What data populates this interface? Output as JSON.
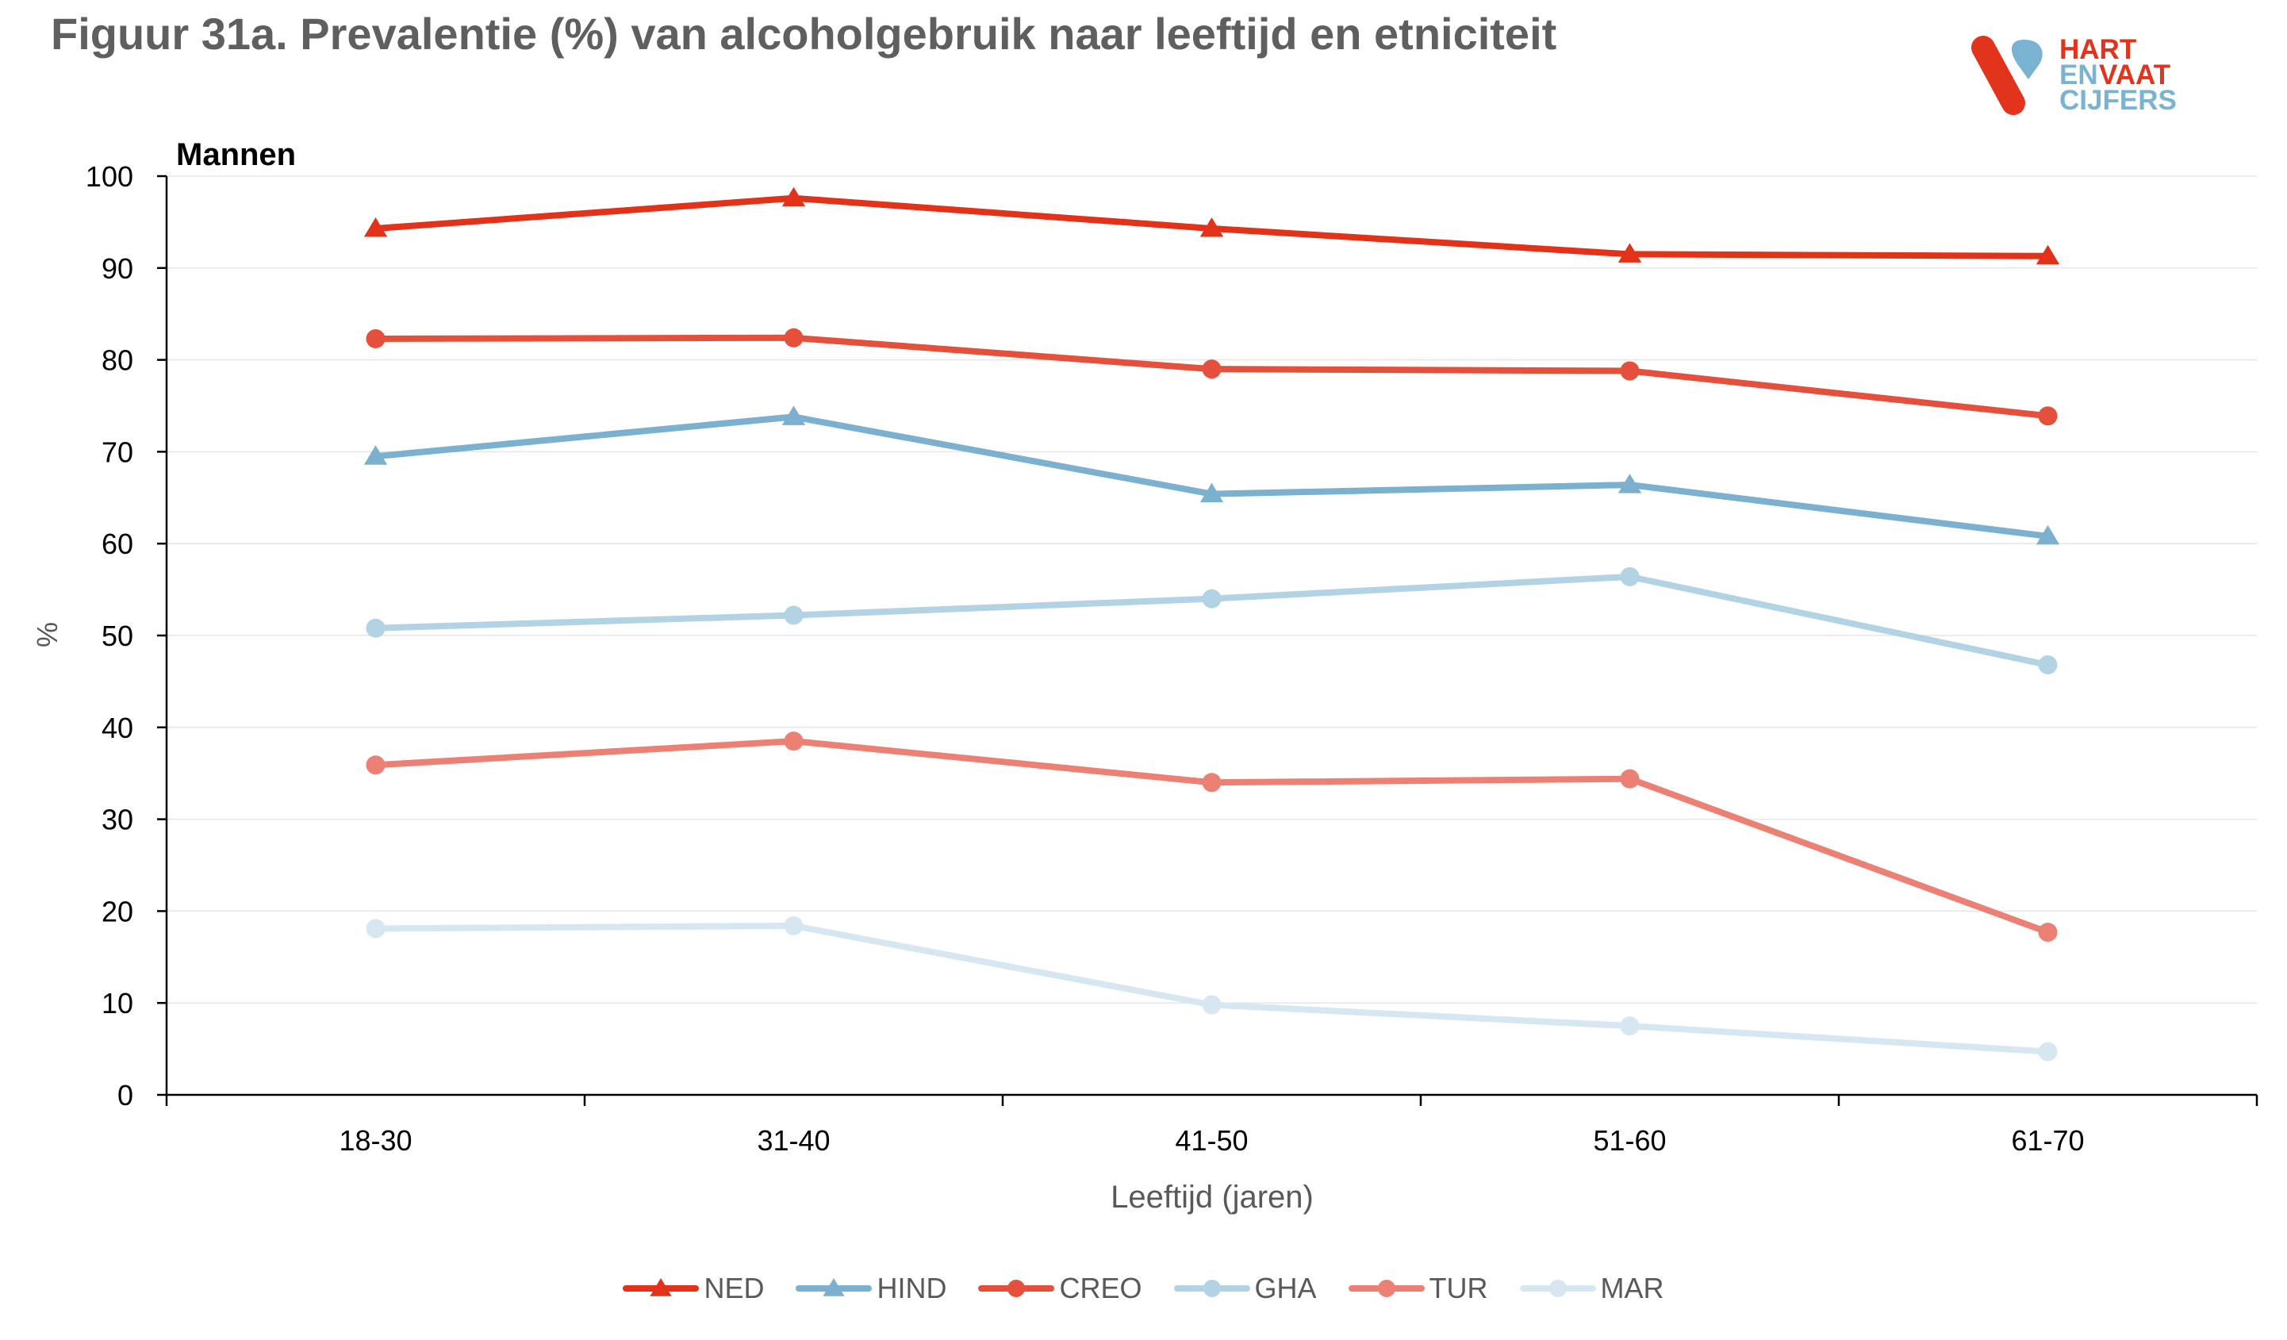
{
  "title": "Figuur 31a. Prevalentie (%) van alcoholgebruik naar leeftijd en etniciteit",
  "logo": {
    "line1a": "HART",
    "line2a": "EN",
    "line2b": "VAAT",
    "line3": "CIJFERS",
    "colors": {
      "red": "#e2341d",
      "blue": "#7ab3d1"
    }
  },
  "chart_data": {
    "type": "line",
    "subtitle": "Mannen",
    "xlabel": "Leeftijd (jaren)",
    "ylabel": "%",
    "ylim": [
      0,
      100
    ],
    "yticks": [
      0,
      10,
      20,
      30,
      40,
      50,
      60,
      70,
      80,
      90,
      100
    ],
    "grid": true,
    "legend_position": "bottom",
    "categories": [
      "18-30",
      "31-40",
      "41-50",
      "51-60",
      "61-70"
    ],
    "series": [
      {
        "name": "NED",
        "marker": "triangle",
        "color": "#e2321a",
        "values": [
          94.3,
          97.6,
          94.3,
          91.5,
          91.3
        ]
      },
      {
        "name": "HIND",
        "marker": "triangle",
        "color": "#7bb0cf",
        "values": [
          69.5,
          73.8,
          65.4,
          66.4,
          60.8
        ]
      },
      {
        "name": "CREO",
        "marker": "circle",
        "color": "#e5503d",
        "values": [
          82.3,
          82.4,
          79.0,
          78.8,
          73.9
        ]
      },
      {
        "name": "GHA",
        "marker": "circle",
        "color": "#b2d3e3",
        "values": [
          50.8,
          52.2,
          54.0,
          56.4,
          46.8
        ]
      },
      {
        "name": "TUR",
        "marker": "circle",
        "color": "#ec8074",
        "values": [
          35.9,
          38.5,
          34.0,
          34.4,
          17.7
        ]
      },
      {
        "name": "MAR",
        "marker": "circle",
        "color": "#d6e7f1",
        "values": [
          18.1,
          18.4,
          9.8,
          7.5,
          4.7
        ]
      }
    ]
  }
}
